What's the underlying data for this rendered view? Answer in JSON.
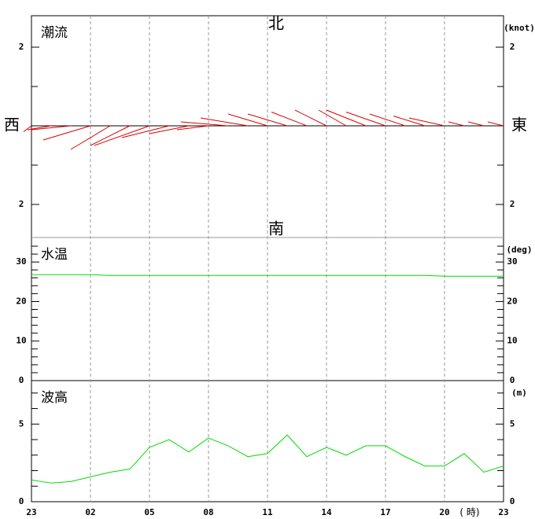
{
  "chart_data": [
    {
      "type": "vector",
      "title": "潮流",
      "unit": "(knot)",
      "compass": {
        "north": "北",
        "south": "南",
        "west": "西",
        "east": "東"
      },
      "ylim": [
        -2.84,
        2.8
      ],
      "yticks": [
        2,
        {
          "value": -2,
          "label": "2"
        }
      ],
      "minor_yticks": [
        -1,
        1
      ],
      "color": "#dd0000",
      "east": [
        -0.2,
        -0.6,
        -1.0,
        -1.2,
        -1.0,
        -1.0,
        -1.4,
        -1.2,
        -1.0,
        -0.8,
        -1.2,
        -1.2,
        -1.0,
        -1.0,
        -0.9,
        -0.8,
        -0.7,
        -1.0,
        -1.0,
        -0.9,
        -0.8,
        -0.9,
        -0.4,
        -0.4,
        -0.4
      ],
      "north": [
        -0.15,
        -0.1,
        -0.1,
        -0.36,
        -0.6,
        -0.5,
        -0.5,
        -0.3,
        -0.2,
        -0.1,
        0.1,
        0.2,
        0.3,
        0.3,
        0.35,
        0.4,
        0.4,
        0.4,
        0.35,
        0.3,
        0.25,
        0.2,
        0.1,
        0.1,
        0.1
      ]
    },
    {
      "type": "line",
      "title": "水温",
      "unit": "(deg)",
      "ylim": [
        0,
        36.2
      ],
      "yticks": [
        0,
        10,
        20,
        30
      ],
      "minor_yticks": [
        2,
        4,
        6,
        8,
        12,
        14,
        16,
        18,
        22,
        24,
        26,
        28,
        32,
        34
      ],
      "color": "#00dd00",
      "values": [
        26.8,
        26.8,
        26.8,
        26.8,
        26.6,
        26.6,
        26.6,
        26.6,
        26.6,
        26.6,
        26.6,
        26.6,
        26.6,
        26.6,
        26.6,
        26.6,
        26.6,
        26.6,
        26.6,
        26.6,
        26.6,
        26.4,
        26.4,
        26.4,
        26.4
      ]
    },
    {
      "type": "line",
      "title": "波高",
      "unit": "(m)",
      "ylim": [
        0,
        7.8
      ],
      "yticks": [
        0,
        5
      ],
      "minor_yticks": [
        1,
        2,
        3,
        4,
        6,
        7
      ],
      "color": "#00dd00",
      "categories": [
        "23",
        null,
        null,
        "02",
        null,
        null,
        "05",
        null,
        null,
        "08",
        null,
        null,
        "11",
        null,
        null,
        "14",
        null,
        null,
        "17",
        null,
        null,
        "20",
        null,
        null,
        "23"
      ],
      "x_unit": "( 時)",
      "values": [
        1.4,
        1.2,
        1.3,
        1.6,
        1.9,
        2.1,
        3.5,
        4.0,
        3.2,
        4.1,
        3.6,
        2.9,
        3.1,
        4.3,
        2.9,
        3.5,
        3.0,
        3.6,
        3.6,
        2.9,
        2.3,
        2.3,
        3.1,
        1.9,
        2.3
      ]
    }
  ]
}
